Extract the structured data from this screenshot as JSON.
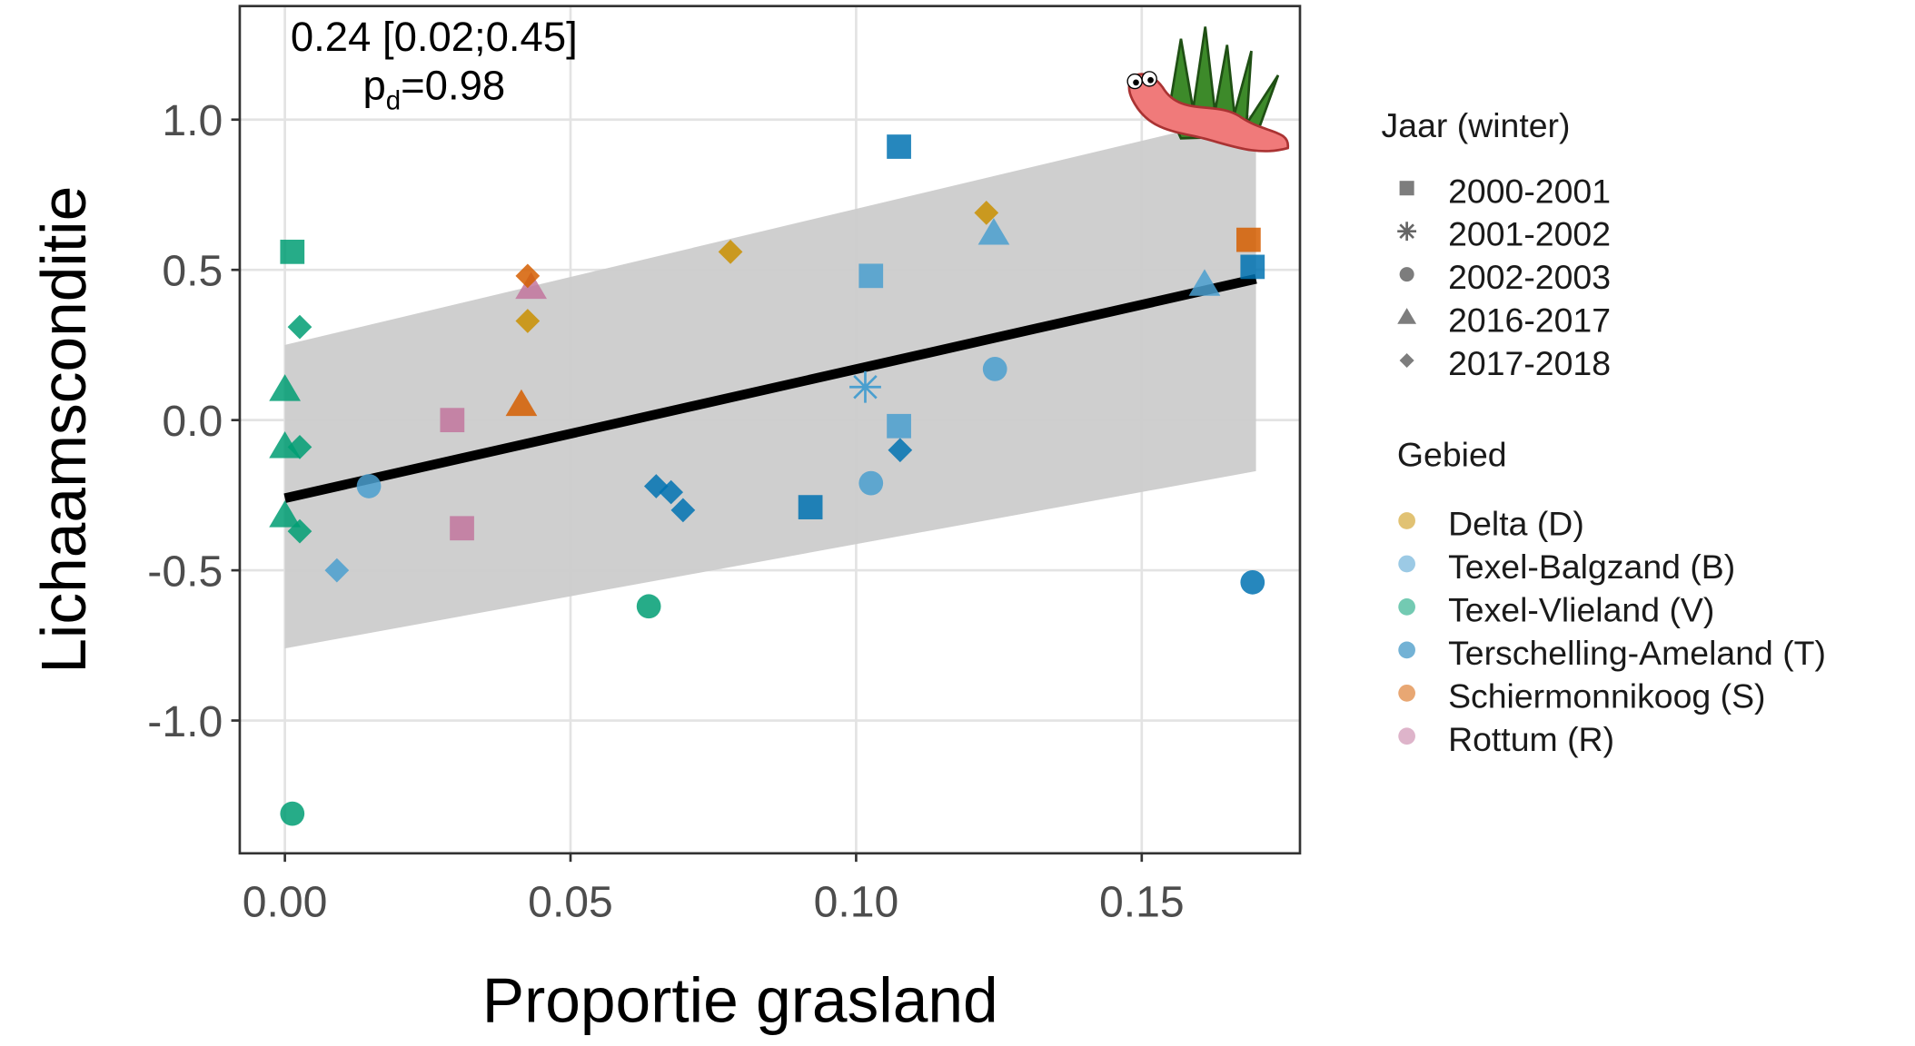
{
  "chart_data": {
    "type": "scatter",
    "x_label": "Proportie grasland",
    "y_label": "Lichaamsconditie",
    "annotation": "0.24 [0.02;0.45]",
    "annotation_p": {
      "base": "p",
      "sub": "d",
      "rest": "=0.98"
    },
    "xlim": [
      -0.0079,
      0.1777
    ],
    "ylim": [
      -1.442,
      1.378
    ],
    "xticks": [
      {
        "value": 0,
        "label": "0.00"
      },
      {
        "value": 0.05,
        "label": "0.05"
      },
      {
        "value": 0.1,
        "label": "0.10"
      },
      {
        "value": 0.15,
        "label": "0.15"
      }
    ],
    "yticks": [
      {
        "value": 1,
        "label": "1.0"
      },
      0.5,
      {
        "value": 0,
        "label": "0.0"
      },
      -0.5,
      {
        "value": -1,
        "label": "-1.0"
      }
    ],
    "grid": true,
    "shape_legend": {
      "title": "Jaar (winter)",
      "items": [
        {
          "name": "2000-2001",
          "shape": "square"
        },
        {
          "name": "2001-2002",
          "shape": "star"
        },
        {
          "name": "2002-2003",
          "shape": "circle"
        },
        {
          "name": "2016-2017",
          "shape": "triangle"
        },
        {
          "name": "2017-2018",
          "shape": "diamond"
        }
      ]
    },
    "color_legend": {
      "title": "Gebied",
      "items": [
        {
          "name": "Delta (D)",
          "color": "#c98f00"
        },
        {
          "name": "Texel-Balgzand (B)",
          "color": "#4a9fcf"
        },
        {
          "name": "Texel-Vlieland (V)",
          "color": "#009e73"
        },
        {
          "name": "Terschelling-Ameland (T)",
          "color": "#0072b2"
        },
        {
          "name": "Schiermonnikoog (S)",
          "color": "#d55e00"
        },
        {
          "name": "Rottum (R)",
          "color": "#c2769e"
        }
      ]
    },
    "fit": {
      "x": [
        0,
        0.17
      ],
      "y": [
        -0.26,
        0.47
      ],
      "lower": [
        -0.76,
        -0.17
      ],
      "upper": [
        0.25,
        1.02
      ],
      "color": "#000000",
      "band_color": "#cccccc"
    },
    "points": [
      {
        "x": 0.0013,
        "y": 0.56,
        "jaar": "2000-2001",
        "gebied": "Texel-Vlieland (V)"
      },
      {
        "x": 0.1075,
        "y": 0.91,
        "jaar": "2000-2001",
        "gebied": "Terschelling-Ameland (T)"
      },
      {
        "x": 0.1026,
        "y": 0.48,
        "jaar": "2000-2001",
        "gebied": "Texel-Balgzand (B)"
      },
      {
        "x": 0.1687,
        "y": 0.6,
        "jaar": "2000-2001",
        "gebied": "Schiermonnikoog (S)"
      },
      {
        "x": 0.1694,
        "y": 0.51,
        "jaar": "2000-2001",
        "gebied": "Terschelling-Ameland (T)"
      },
      {
        "x": 0.0293,
        "y": 0.0,
        "jaar": "2000-2001",
        "gebied": "Rottum (R)"
      },
      {
        "x": 0.031,
        "y": -0.36,
        "jaar": "2000-2001",
        "gebied": "Rottum (R)"
      },
      {
        "x": 0.092,
        "y": -0.29,
        "jaar": "2000-2001",
        "gebied": "Terschelling-Ameland (T)"
      },
      {
        "x": 0.1075,
        "y": -0.02,
        "jaar": "2000-2001",
        "gebied": "Texel-Balgzand (B)"
      },
      {
        "x": 0.1016,
        "y": 0.11,
        "jaar": "2001-2002",
        "gebied": "Texel-Balgzand (B)"
      },
      {
        "x": 0.0147,
        "y": -0.22,
        "jaar": "2002-2003",
        "gebied": "Texel-Balgzand (B)"
      },
      {
        "x": 0.0637,
        "y": -0.62,
        "jaar": "2002-2003",
        "gebied": "Texel-Vlieland (V)"
      },
      {
        "x": 0.1026,
        "y": -0.21,
        "jaar": "2002-2003",
        "gebied": "Texel-Balgzand (B)"
      },
      {
        "x": 0.1243,
        "y": 0.17,
        "jaar": "2002-2003",
        "gebied": "Texel-Balgzand (B)"
      },
      {
        "x": 0.1694,
        "y": -0.54,
        "jaar": "2002-2003",
        "gebied": "Terschelling-Ameland (T)"
      },
      {
        "x": 0.0013,
        "y": -1.31,
        "jaar": "2002-2003",
        "gebied": "Texel-Vlieland (V)"
      },
      {
        "x": 0.0,
        "y": 0.1,
        "jaar": "2016-2017",
        "gebied": "Texel-Vlieland (V)"
      },
      {
        "x": 0.0,
        "y": -0.09,
        "jaar": "2016-2017",
        "gebied": "Texel-Vlieland (V)"
      },
      {
        "x": 0.0,
        "y": -0.32,
        "jaar": "2016-2017",
        "gebied": "Texel-Vlieland (V)"
      },
      {
        "x": 0.0414,
        "y": 0.05,
        "jaar": "2016-2017",
        "gebied": "Schiermonnikoog (S)"
      },
      {
        "x": 0.0431,
        "y": 0.44,
        "jaar": "2016-2017",
        "gebied": "Rottum (R)"
      },
      {
        "x": 0.1241,
        "y": 0.62,
        "jaar": "2016-2017",
        "gebied": "Texel-Balgzand (B)"
      },
      {
        "x": 0.161,
        "y": 0.45,
        "jaar": "2016-2017",
        "gebied": "Texel-Balgzand (B)"
      },
      {
        "x": 0.0026,
        "y": 0.31,
        "jaar": "2017-2018",
        "gebied": "Texel-Vlieland (V)"
      },
      {
        "x": 0.0026,
        "y": -0.09,
        "jaar": "2017-2018",
        "gebied": "Texel-Vlieland (V)"
      },
      {
        "x": 0.0026,
        "y": -0.37,
        "jaar": "2017-2018",
        "gebied": "Texel-Vlieland (V)"
      },
      {
        "x": 0.0091,
        "y": -0.5,
        "jaar": "2017-2018",
        "gebied": "Texel-Balgzand (B)"
      },
      {
        "x": 0.0425,
        "y": 0.48,
        "jaar": "2017-2018",
        "gebied": "Schiermonnikoog (S)"
      },
      {
        "x": 0.0425,
        "y": 0.33,
        "jaar": "2017-2018",
        "gebied": "Delta (D)"
      },
      {
        "x": 0.078,
        "y": 0.56,
        "jaar": "2017-2018",
        "gebied": "Delta (D)"
      },
      {
        "x": 0.1228,
        "y": 0.69,
        "jaar": "2017-2018",
        "gebied": "Delta (D)"
      },
      {
        "x": 0.065,
        "y": -0.22,
        "jaar": "2017-2018",
        "gebied": "Terschelling-Ameland (T)"
      },
      {
        "x": 0.0676,
        "y": -0.24,
        "jaar": "2017-2018",
        "gebied": "Terschelling-Ameland (T)"
      },
      {
        "x": 0.0697,
        "y": -0.3,
        "jaar": "2017-2018",
        "gebied": "Terschelling-Ameland (T)"
      },
      {
        "x": 0.1077,
        "y": -0.1,
        "jaar": "2017-2018",
        "gebied": "Terschelling-Ameland (T)"
      }
    ]
  }
}
